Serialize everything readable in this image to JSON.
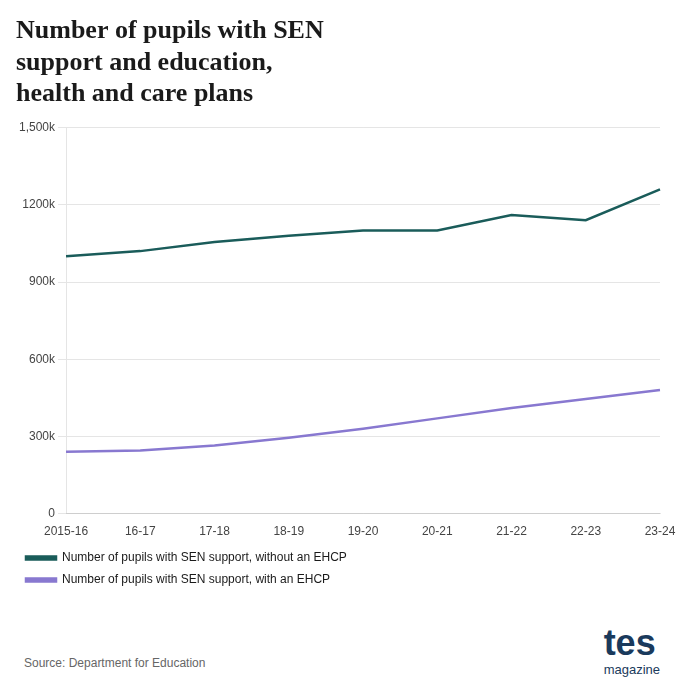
{
  "chart_data": {
    "type": "line",
    "title": [
      "Number of pupils with SEN",
      "support and education,",
      "health and care plans"
    ],
    "categories": [
      "2015-16",
      "16-17",
      "17-18",
      "18-19",
      "19-20",
      "20-21",
      "21-22",
      "22-23",
      "23-24"
    ],
    "series": [
      {
        "name": "Number of pupils with SEN support, without an EHCP",
        "color": "#1a5c5a",
        "values": [
          1000000,
          1020000,
          1055000,
          1080000,
          1100000,
          1100000,
          1160000,
          1140000,
          1260000
        ]
      },
      {
        "name": "Number of pupils with SEN support, with an EHCP",
        "color": "#8878d0",
        "values": [
          240000,
          245000,
          265000,
          295000,
          330000,
          370000,
          410000,
          445000,
          480000
        ]
      }
    ],
    "ylim": [
      0,
      1500000
    ],
    "yticks": [
      0,
      {
        "value": 300000,
        "label": "300k"
      },
      {
        "value": 600000,
        "label": "600k"
      },
      {
        "value": 900000,
        "label": "900k"
      },
      {
        "value": 1200000,
        "label": "1200k"
      },
      {
        "value": 1500000,
        "label": "1,500k"
      }
    ],
    "grid": true,
    "legend": "bottom",
    "annotations": [
      "Source: Department for Education",
      "tes",
      "magazine"
    ]
  }
}
